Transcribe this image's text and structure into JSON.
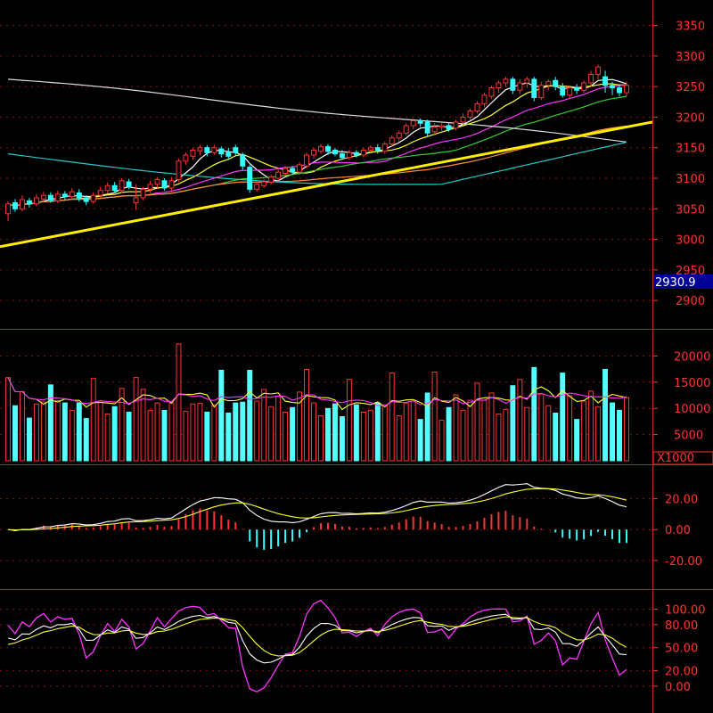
{
  "chart_data": [
    {
      "type": "candlestick",
      "panel": "price",
      "ylim": [
        2855,
        3380
      ],
      "y_ticks": [
        "3350",
        "3300",
        "3250",
        "3200",
        "3150",
        "3100",
        "3050",
        "3000",
        "2950",
        "2900"
      ],
      "price_marker": "2930.9",
      "candles": [
        [
          3042,
          3058,
          3030,
          3062,
          1
        ],
        [
          3060,
          3050,
          3045,
          3066,
          0
        ],
        [
          3050,
          3065,
          3046,
          3072,
          1
        ],
        [
          3063,
          3058,
          3052,
          3068,
          0
        ],
        [
          3058,
          3068,
          3054,
          3074,
          1
        ],
        [
          3066,
          3072,
          3062,
          3078,
          1
        ],
        [
          3072,
          3064,
          3060,
          3077,
          0
        ],
        [
          3063,
          3074,
          3059,
          3080,
          1
        ],
        [
          3074,
          3070,
          3064,
          3079,
          0
        ],
        [
          3070,
          3078,
          3066,
          3084,
          1
        ],
        [
          3076,
          3068,
          3062,
          3082,
          0
        ],
        [
          3068,
          3062,
          3056,
          3072,
          0
        ],
        [
          3062,
          3072,
          3058,
          3077,
          1
        ],
        [
          3072,
          3080,
          3068,
          3086,
          1
        ],
        [
          3080,
          3088,
          3075,
          3093,
          1
        ],
        [
          3088,
          3080,
          3076,
          3094,
          0
        ],
        [
          3080,
          3096,
          3076,
          3100,
          1
        ],
        [
          3094,
          3086,
          3082,
          3099,
          0
        ],
        [
          3060,
          3068,
          3048,
          3090,
          1
        ],
        [
          3068,
          3082,
          3064,
          3086,
          1
        ],
        [
          3082,
          3090,
          3076,
          3096,
          1
        ],
        [
          3090,
          3098,
          3084,
          3102,
          1
        ],
        [
          3096,
          3084,
          3080,
          3100,
          0
        ],
        [
          3084,
          3096,
          3080,
          3102,
          1
        ],
        [
          3098,
          3128,
          3094,
          3132,
          1
        ],
        [
          3128,
          3138,
          3122,
          3142,
          1
        ],
        [
          3136,
          3146,
          3130,
          3150,
          1
        ],
        [
          3145,
          3150,
          3138,
          3155,
          1
        ],
        [
          3150,
          3142,
          3136,
          3154,
          0
        ],
        [
          3142,
          3150,
          3138,
          3155,
          1
        ],
        [
          3148,
          3140,
          3134,
          3152,
          0
        ],
        [
          3142,
          3136,
          3130,
          3150,
          0
        ],
        [
          3150,
          3142,
          3136,
          3155,
          0
        ],
        [
          3138,
          3120,
          3114,
          3142,
          0
        ],
        [
          3118,
          3082,
          3076,
          3122,
          0
        ],
        [
          3082,
          3090,
          3078,
          3095,
          1
        ],
        [
          3088,
          3094,
          3084,
          3098,
          1
        ],
        [
          3094,
          3102,
          3090,
          3106,
          1
        ],
        [
          3100,
          3110,
          3094,
          3115,
          1
        ],
        [
          3108,
          3116,
          3104,
          3120,
          1
        ],
        [
          3116,
          3110,
          3106,
          3120,
          0
        ],
        [
          3110,
          3122,
          3106,
          3126,
          1
        ],
        [
          3120,
          3138,
          3116,
          3142,
          1
        ],
        [
          3138,
          3146,
          3132,
          3150,
          1
        ],
        [
          3144,
          3152,
          3140,
          3156,
          1
        ],
        [
          3152,
          3144,
          3138,
          3156,
          0
        ],
        [
          3146,
          3140,
          3136,
          3150,
          0
        ],
        [
          3140,
          3134,
          3130,
          3146,
          0
        ],
        [
          3134,
          3142,
          3130,
          3147,
          1
        ],
        [
          3142,
          3138,
          3134,
          3146,
          0
        ],
        [
          3138,
          3146,
          3134,
          3150,
          1
        ],
        [
          3146,
          3150,
          3140,
          3154,
          1
        ],
        [
          3150,
          3146,
          3140,
          3156,
          0
        ],
        [
          3144,
          3156,
          3140,
          3160,
          1
        ],
        [
          3156,
          3166,
          3152,
          3170,
          1
        ],
        [
          3166,
          3174,
          3160,
          3178,
          1
        ],
        [
          3174,
          3186,
          3170,
          3190,
          1
        ],
        [
          3186,
          3194,
          3180,
          3198,
          1
        ],
        [
          3194,
          3190,
          3184,
          3198,
          0
        ],
        [
          3192,
          3174,
          3168,
          3196,
          0
        ],
        [
          3176,
          3184,
          3170,
          3190,
          1
        ],
        [
          3184,
          3186,
          3178,
          3190,
          1
        ],
        [
          3186,
          3180,
          3176,
          3190,
          0
        ],
        [
          3182,
          3192,
          3178,
          3196,
          1
        ],
        [
          3192,
          3200,
          3188,
          3206,
          1
        ],
        [
          3200,
          3210,
          3196,
          3214,
          1
        ],
        [
          3210,
          3222,
          3206,
          3226,
          1
        ],
        [
          3222,
          3236,
          3216,
          3240,
          1
        ],
        [
          3234,
          3248,
          3230,
          3252,
          1
        ],
        [
          3248,
          3256,
          3240,
          3260,
          1
        ],
        [
          3256,
          3262,
          3250,
          3266,
          1
        ],
        [
          3262,
          3244,
          3238,
          3266,
          0
        ],
        [
          3244,
          3256,
          3238,
          3262,
          1
        ],
        [
          3256,
          3262,
          3248,
          3266,
          1
        ],
        [
          3262,
          3232,
          3226,
          3266,
          0
        ],
        [
          3232,
          3252,
          3228,
          3258,
          1
        ],
        [
          3252,
          3258,
          3244,
          3262,
          1
        ],
        [
          3260,
          3250,
          3244,
          3266,
          0
        ],
        [
          3250,
          3236,
          3232,
          3256,
          0
        ],
        [
          3236,
          3248,
          3230,
          3252,
          1
        ],
        [
          3248,
          3244,
          3238,
          3254,
          0
        ],
        [
          3244,
          3256,
          3240,
          3260,
          1
        ],
        [
          3256,
          3270,
          3250,
          3276,
          1
        ],
        [
          3270,
          3282,
          3262,
          3286,
          1
        ],
        [
          3266,
          3252,
          3240,
          3276,
          0
        ],
        [
          3252,
          3248,
          3236,
          3258,
          0
        ],
        [
          3248,
          3240,
          3234,
          3254,
          0
        ],
        [
          3240,
          3252,
          3234,
          3258,
          1
        ]
      ],
      "trendline": {
        "y_start": 2988,
        "y_end": 3192
      }
    },
    {
      "type": "bar",
      "panel": "volume",
      "ylim": [
        0,
        25000
      ],
      "y_ticks": [
        "20000",
        "15000",
        "10000",
        "5000"
      ],
      "unit": "X1000"
    },
    {
      "type": "bar",
      "panel": "macd",
      "ylim": [
        -38,
        40
      ],
      "y_ticks": [
        "20.00",
        "0.00",
        "-20.00"
      ]
    },
    {
      "type": "line",
      "panel": "kdj",
      "ylim": [
        -35,
        125
      ],
      "y_ticks": [
        "100.00",
        "80.00",
        "50.00",
        "20.00",
        "0.00"
      ]
    }
  ]
}
